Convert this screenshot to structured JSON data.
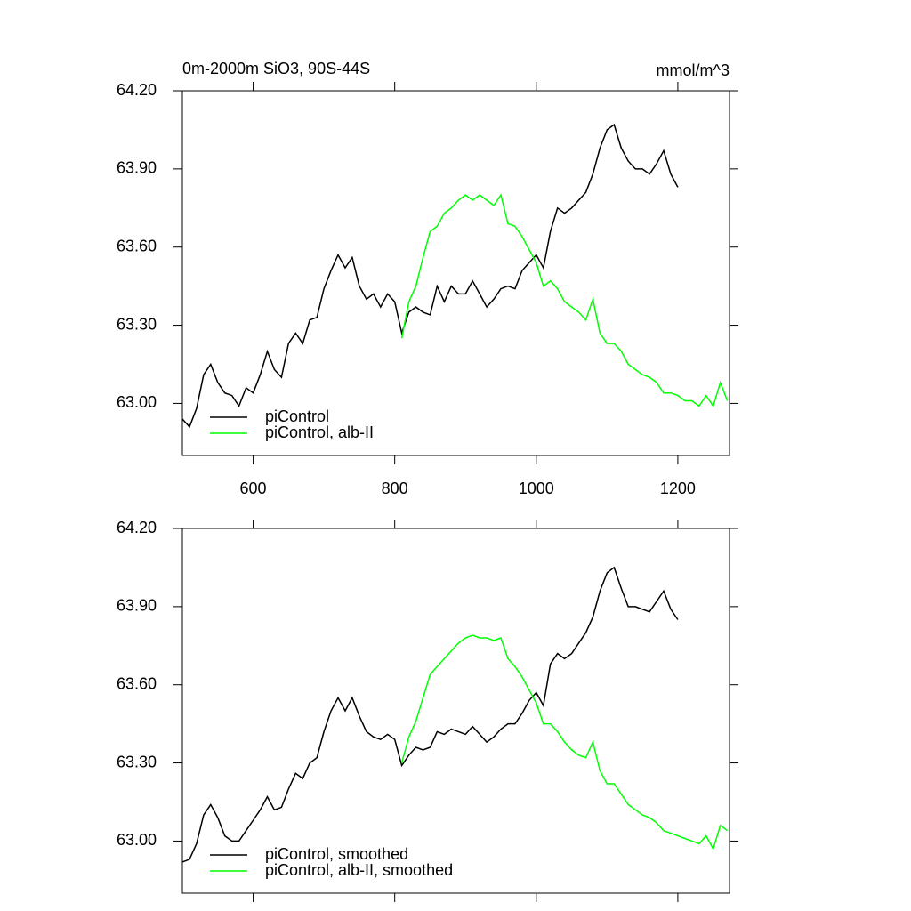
{
  "chart_data": [
    {
      "type": "line",
      "title": "0m-2000m SiO3, 90S-44S",
      "units": "mmol/m^3",
      "xlim": [
        500,
        1273
      ],
      "xticks": [
        600,
        800,
        1000,
        1200
      ],
      "ylim": [
        62.8,
        64.2
      ],
      "yticks": [
        {
          "value": 63.0,
          "label": "63.00"
        },
        {
          "value": 63.3,
          "label": "63.30"
        },
        {
          "value": 63.6,
          "label": "63.60"
        },
        {
          "value": 63.9,
          "label": "63.90"
        },
        {
          "value": 64.2,
          "label": "64.20"
        }
      ],
      "series": [
        {
          "name": "piControl",
          "color": "#000000",
          "x": [
            500,
            510,
            520,
            530,
            540,
            550,
            560,
            570,
            580,
            590,
            600,
            610,
            620,
            630,
            640,
            650,
            660,
            670,
            680,
            690,
            700,
            710,
            720,
            730,
            740,
            750,
            760,
            770,
            780,
            790,
            800,
            810,
            820,
            830,
            840,
            850,
            860,
            870,
            880,
            890,
            900,
            910,
            920,
            930,
            940,
            950,
            960,
            970,
            980,
            990,
            1000,
            1010,
            1020,
            1030,
            1040,
            1050,
            1060,
            1070,
            1080,
            1090,
            1100,
            1110,
            1120,
            1130,
            1140,
            1150,
            1160,
            1170,
            1180,
            1190,
            1200
          ],
          "values": [
            62.94,
            62.91,
            62.98,
            63.11,
            63.15,
            63.08,
            63.04,
            63.03,
            62.99,
            63.06,
            63.04,
            63.11,
            63.2,
            63.13,
            63.1,
            63.23,
            63.27,
            63.23,
            63.32,
            63.33,
            63.44,
            63.51,
            63.57,
            63.52,
            63.56,
            63.45,
            63.4,
            63.42,
            63.37,
            63.42,
            63.39,
            63.27,
            63.35,
            63.37,
            63.35,
            63.34,
            63.45,
            63.39,
            63.45,
            63.42,
            63.42,
            63.47,
            63.42,
            63.37,
            63.4,
            63.44,
            63.45,
            63.44,
            63.51,
            63.54,
            63.57,
            63.52,
            63.66,
            63.75,
            63.73,
            63.75,
            63.78,
            63.81,
            63.88,
            63.98,
            64.05,
            64.07,
            63.98,
            63.93,
            63.9,
            63.9,
            63.88,
            63.92,
            63.97,
            63.88,
            63.83
          ]
        },
        {
          "name": "piControl, alb-II",
          "color": "#00ff00",
          "x": [
            810,
            820,
            830,
            840,
            850,
            860,
            870,
            880,
            890,
            900,
            910,
            920,
            930,
            940,
            950,
            960,
            970,
            980,
            990,
            1000,
            1010,
            1020,
            1030,
            1040,
            1050,
            1060,
            1070,
            1080,
            1090,
            1100,
            1110,
            1120,
            1130,
            1140,
            1150,
            1160,
            1170,
            1180,
            1190,
            1200,
            1210,
            1220,
            1230,
            1240,
            1250,
            1260,
            1270
          ],
          "values": [
            63.25,
            63.39,
            63.45,
            63.56,
            63.66,
            63.68,
            63.73,
            63.75,
            63.78,
            63.8,
            63.78,
            63.8,
            63.78,
            63.76,
            63.8,
            63.69,
            63.68,
            63.64,
            63.59,
            63.54,
            63.45,
            63.47,
            63.44,
            63.39,
            63.37,
            63.35,
            63.32,
            63.4,
            63.27,
            63.23,
            63.23,
            63.2,
            63.15,
            63.13,
            63.11,
            63.1,
            63.08,
            63.04,
            63.04,
            63.03,
            63.01,
            63.01,
            62.99,
            63.03,
            62.99,
            63.08,
            63.01
          ]
        }
      ]
    },
    {
      "type": "line",
      "xlim": [
        500,
        1273
      ],
      "xticks": [
        600,
        800,
        1000,
        1200
      ],
      "ylim": [
        62.8,
        64.2
      ],
      "yticks": [
        {
          "value": 63.0,
          "label": "63.00"
        },
        {
          "value": 63.3,
          "label": "63.30"
        },
        {
          "value": 63.6,
          "label": "63.60"
        },
        {
          "value": 63.9,
          "label": "63.90"
        },
        {
          "value": 64.2,
          "label": "64.20"
        }
      ],
      "series": [
        {
          "name": "piControl, smoothed",
          "color": "#000000",
          "x": [
            500,
            510,
            520,
            530,
            540,
            550,
            560,
            570,
            580,
            590,
            600,
            610,
            620,
            630,
            640,
            650,
            660,
            670,
            680,
            690,
            700,
            710,
            720,
            730,
            740,
            750,
            760,
            770,
            780,
            790,
            800,
            810,
            820,
            830,
            840,
            850,
            860,
            870,
            880,
            890,
            900,
            910,
            920,
            930,
            940,
            950,
            960,
            970,
            980,
            990,
            1000,
            1010,
            1020,
            1030,
            1040,
            1050,
            1060,
            1070,
            1080,
            1090,
            1100,
            1110,
            1120,
            1130,
            1140,
            1150,
            1160,
            1170,
            1180,
            1190,
            1200
          ],
          "values": [
            62.92,
            62.93,
            62.99,
            63.1,
            63.14,
            63.09,
            63.02,
            63.0,
            63.0,
            63.04,
            63.08,
            63.12,
            63.17,
            63.12,
            63.13,
            63.2,
            63.26,
            63.24,
            63.3,
            63.32,
            63.42,
            63.5,
            63.55,
            63.5,
            63.55,
            63.48,
            63.42,
            63.4,
            63.39,
            63.41,
            63.39,
            63.29,
            63.33,
            63.36,
            63.35,
            63.36,
            63.42,
            63.41,
            63.43,
            63.42,
            63.41,
            63.44,
            63.41,
            63.38,
            63.4,
            63.43,
            63.45,
            63.45,
            63.49,
            63.54,
            63.57,
            63.52,
            63.68,
            63.72,
            63.7,
            63.72,
            63.76,
            63.8,
            63.86,
            63.96,
            64.03,
            64.05,
            63.97,
            63.9,
            63.9,
            63.89,
            63.88,
            63.92,
            63.96,
            63.89,
            63.85
          ]
        },
        {
          "name": "piControl, alb-II, smoothed",
          "color": "#00ff00",
          "x": [
            810,
            820,
            830,
            840,
            850,
            860,
            870,
            880,
            890,
            900,
            910,
            920,
            930,
            940,
            950,
            960,
            970,
            980,
            990,
            1000,
            1010,
            1020,
            1030,
            1040,
            1050,
            1060,
            1070,
            1080,
            1090,
            1100,
            1110,
            1120,
            1130,
            1140,
            1150,
            1160,
            1170,
            1180,
            1190,
            1200,
            1210,
            1220,
            1230,
            1240,
            1250,
            1260,
            1270
          ],
          "values": [
            63.3,
            63.4,
            63.46,
            63.55,
            63.64,
            63.67,
            63.7,
            63.73,
            63.76,
            63.78,
            63.79,
            63.78,
            63.78,
            63.77,
            63.78,
            63.7,
            63.67,
            63.63,
            63.58,
            63.53,
            63.45,
            63.45,
            63.42,
            63.38,
            63.35,
            63.33,
            63.32,
            63.38,
            63.27,
            63.22,
            63.22,
            63.18,
            63.14,
            63.12,
            63.1,
            63.09,
            63.07,
            63.04,
            63.03,
            63.02,
            63.01,
            63.0,
            62.99,
            63.02,
            62.97,
            63.06,
            63.04
          ]
        }
      ]
    }
  ]
}
